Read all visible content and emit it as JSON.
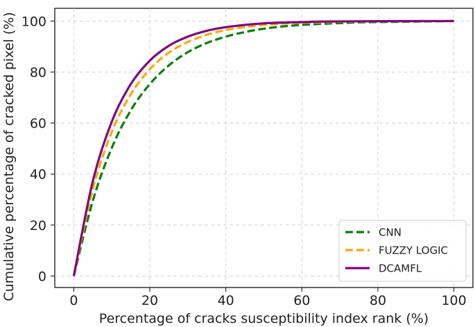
{
  "chart_data": {
    "type": "line",
    "title": "",
    "xlabel": "Percentage of cracks susceptibility index rank (%)",
    "ylabel": "Cumulative percentage of cracked pixel (%)",
    "xlim": [
      -5,
      105
    ],
    "ylim": [
      -4.5,
      105
    ],
    "xticks": [
      0,
      20,
      40,
      60,
      80,
      100
    ],
    "yticks": [
      0,
      20,
      40,
      60,
      80,
      100
    ],
    "xtick_labels": [
      "0",
      "20",
      "40",
      "60",
      "80",
      "100"
    ],
    "ytick_labels": [
      "0",
      "20",
      "40",
      "60",
      "80",
      "100"
    ],
    "grid": true,
    "legend_position": "lower-right",
    "x": [
      0,
      5,
      10,
      15,
      20,
      25,
      30,
      35,
      40,
      45,
      50,
      55,
      60,
      65,
      70,
      75,
      80,
      85,
      90,
      95,
      100
    ],
    "series": [
      {
        "name": "CNN",
        "color": "#008000",
        "style": "dashed",
        "values": [
          0,
          29.5,
          50.3,
          65.0,
          75.3,
          82.6,
          87.8,
          91.4,
          93.9,
          95.7,
          97.0,
          97.9,
          98.5,
          98.9,
          99.2,
          99.5,
          99.6,
          99.7,
          99.8,
          99.9,
          100
        ]
      },
      {
        "name": "FUZZY LOGIC",
        "color": "#ffa500",
        "style": "dashed",
        "values": [
          0,
          34.1,
          56.5,
          71.3,
          81.1,
          87.6,
          91.8,
          94.6,
          96.5,
          97.7,
          98.5,
          99.0,
          99.3,
          99.5,
          99.7,
          99.8,
          99.9,
          99.9,
          99.95,
          99.97,
          100
        ]
      },
      {
        "name": "DCAMFL",
        "color": "#800080",
        "style": "solid",
        "values": [
          0,
          37.2,
          60.6,
          75.3,
          84.5,
          90.3,
          93.9,
          96.2,
          97.6,
          98.5,
          99.1,
          99.4,
          99.6,
          99.8,
          99.85,
          99.9,
          99.95,
          99.97,
          99.98,
          99.99,
          100
        ]
      }
    ]
  }
}
